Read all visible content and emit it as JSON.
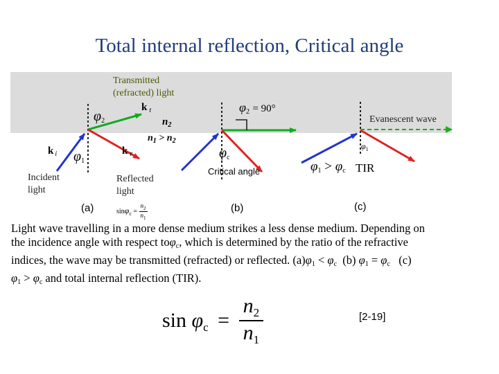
{
  "title": "Total internal reflection, Critical angle",
  "labels": {
    "transmitted": [
      "Transmitted",
      "(refracted) light"
    ],
    "kt": "k",
    "kt_sub": "t",
    "n2": "n",
    "n2_sub": "2",
    "n_relation": "n",
    "n_relation_sub1": "1",
    "n_relation_gt": " > n",
    "n_relation_sub2": "2",
    "ki": "k",
    "ki_sub": "i",
    "kr": "k",
    "kr_sub": "r",
    "incident": [
      "Incident",
      "light"
    ],
    "reflected": [
      "Reflected",
      "light"
    ],
    "phi": "φ",
    "phi2_sub": "2",
    "phi1_sub": "1",
    "phic_sub": "c",
    "phi2_90": "= 90°",
    "evanescent": "Evanescent wave",
    "critical": "Critical angle",
    "tir": "TIR",
    "gt": ">",
    "a": "(a)",
    "b": "(b)",
    "c": "(c)",
    "sin_small": "sin",
    "sin_small_eq": "=",
    "frac_small_num": "n",
    "frac_small_num_sub": "2",
    "frac_small_den": "n",
    "frac_small_den_sub": "1"
  },
  "caption": {
    "line1": "Light wave travelling in a more dense medium strikes a less dense medium. Depending on",
    "line2a": "the incidence angle with respect to",
    "line2b": ", which is determined by the ratio of the refractive",
    "line3a": "indices, the wave may be transmitted (refracted) or reflected. (a)",
    "line3b": "(b)",
    "line3c": "(c)",
    "line4": "and total internal reflection (TIR).",
    "lt": "<",
    "eq": "=",
    "gt": ">"
  },
  "formula": {
    "sin": "sin",
    "eq": "=",
    "num": "n",
    "num_sub": "2",
    "den": "n",
    "den_sub": "1"
  },
  "reference": "[2-19]",
  "colors": {
    "title": "#1f3d7a",
    "incident": "#2233cc",
    "transmitted": "#11aa22",
    "reflected": "#dd2222",
    "panel": "#dcdcdc"
  }
}
